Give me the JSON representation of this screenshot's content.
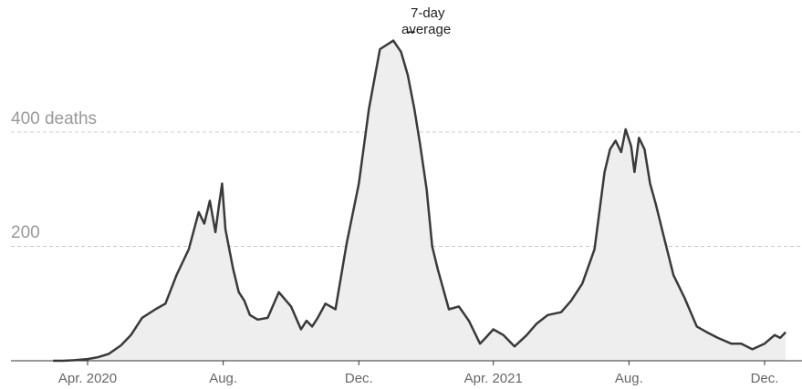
{
  "chart_data": {
    "type": "area",
    "ylabel_suffix": "deaths",
    "y_ticks": [
      {
        "value": 400,
        "label": "400 deaths"
      },
      {
        "value": 200,
        "label": "200"
      }
    ],
    "x_ticks": [
      {
        "date": "2020-04-01",
        "label": "Apr. 2020"
      },
      {
        "date": "2020-08-01",
        "label": "Aug."
      },
      {
        "date": "2020-12-01",
        "label": "Dec."
      },
      {
        "date": "2021-04-01",
        "label": "Apr. 2021"
      },
      {
        "date": "2021-08-01",
        "label": "Aug."
      },
      {
        "date": "2021-12-01",
        "label": "Dec."
      }
    ],
    "annotation": {
      "line1": "7-day",
      "line2": "average",
      "date": "2021-01-14",
      "value": 575
    },
    "ylim": [
      0,
      575
    ],
    "grid": true,
    "series": [
      {
        "x": [
          "2020-03-01",
          "2020-03-10",
          "2020-03-20",
          "2020-04-01",
          "2020-04-10",
          "2020-04-20",
          "2020-05-01",
          "2020-05-10",
          "2020-05-20",
          "2020-06-01",
          "2020-06-10",
          "2020-06-20",
          "2020-07-01",
          "2020-07-10",
          "2020-07-15",
          "2020-07-20",
          "2020-07-25",
          "2020-07-28",
          "2020-07-31",
          "2020-08-03",
          "2020-08-06",
          "2020-08-10",
          "2020-08-15",
          "2020-08-20",
          "2020-08-25",
          "2020-09-01",
          "2020-09-10",
          "2020-09-20",
          "2020-10-01",
          "2020-10-10",
          "2020-10-15",
          "2020-10-20",
          "2020-10-25",
          "2020-11-01",
          "2020-11-10",
          "2020-11-20",
          "2020-12-01",
          "2020-12-10",
          "2020-12-20",
          "2021-01-01",
          "2021-01-08",
          "2021-01-14",
          "2021-01-20",
          "2021-01-25",
          "2021-01-31",
          "2021-02-05",
          "2021-02-10",
          "2021-02-20",
          "2021-03-01",
          "2021-03-10",
          "2021-03-20",
          "2021-03-25",
          "2021-04-01",
          "2021-04-10",
          "2021-04-20",
          "2021-05-01",
          "2021-05-10",
          "2021-05-20",
          "2021-06-01",
          "2021-06-10",
          "2021-06-20",
          "2021-07-01",
          "2021-07-10",
          "2021-07-15",
          "2021-07-20",
          "2021-07-25",
          "2021-07-29",
          "2021-08-03",
          "2021-08-06",
          "2021-08-10",
          "2021-08-15",
          "2021-08-20",
          "2021-08-25",
          "2021-09-01",
          "2021-09-10",
          "2021-09-20",
          "2021-10-01",
          "2021-10-10",
          "2021-10-20",
          "2021-11-01",
          "2021-11-10",
          "2021-11-20",
          "2021-12-01",
          "2021-12-10",
          "2021-12-15",
          "2021-12-20"
        ],
        "y": [
          0,
          0,
          1,
          3,
          6,
          12,
          27,
          45,
          75,
          90,
          100,
          150,
          195,
          260,
          240,
          280,
          225,
          270,
          310,
          230,
          200,
          160,
          120,
          105,
          80,
          72,
          75,
          120,
          95,
          55,
          70,
          60,
          75,
          100,
          90,
          205,
          310,
          440,
          545,
          560,
          540,
          500,
          440,
          380,
          300,
          200,
          160,
          90,
          95,
          70,
          30,
          40,
          55,
          45,
          25,
          45,
          65,
          80,
          85,
          105,
          135,
          195,
          330,
          370,
          385,
          365,
          405,
          375,
          330,
          390,
          370,
          310,
          275,
          220,
          150,
          110,
          60,
          50,
          40,
          30,
          30,
          20,
          30,
          45,
          40,
          50
        ]
      }
    ]
  }
}
